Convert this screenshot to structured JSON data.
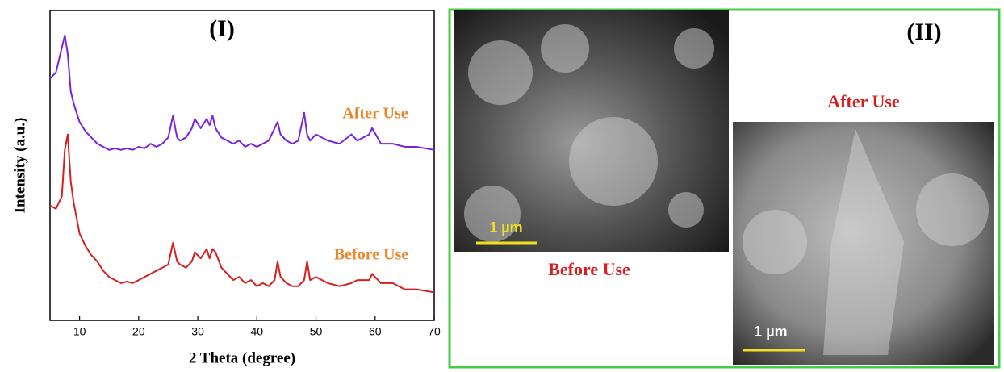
{
  "chart_data": {
    "type": "line",
    "title": "(I)",
    "x_label": "2 Theta (degree)",
    "y_label": "Intensity (a.u.)",
    "xlim": [
      5,
      70
    ],
    "xticks": [
      10,
      20,
      30,
      40,
      50,
      60,
      70
    ],
    "ylim": [
      0,
      100
    ],
    "x": [
      5,
      6,
      7,
      7.5,
      8,
      8.5,
      9,
      10,
      11,
      12,
      13,
      14,
      15,
      16,
      17,
      18,
      19,
      20,
      21,
      22,
      23,
      24,
      25,
      25.8,
      26.5,
      27,
      28,
      29,
      29.5,
      30.5,
      31.5,
      32,
      32.5,
      33,
      34,
      35,
      36,
      37,
      38,
      39,
      40,
      41,
      42,
      43,
      43.5,
      44,
      45,
      46,
      47,
      48,
      48.5,
      49,
      50,
      52,
      54,
      56,
      57,
      59,
      59.5,
      61,
      63,
      65,
      67,
      70
    ],
    "series": [
      {
        "name": "After Use",
        "color": "#7b22e0",
        "label_color": "#e8862a",
        "values": [
          78,
          80,
          88,
          92,
          86,
          74,
          70,
          64,
          61,
          59,
          57,
          56,
          55,
          55.5,
          55,
          55.5,
          55,
          56,
          55.5,
          57,
          56,
          57,
          59,
          66,
          59,
          58,
          59,
          62,
          65,
          62,
          65,
          63,
          66,
          62,
          59,
          58,
          57,
          58,
          56,
          57,
          56,
          57,
          58,
          62,
          64,
          60,
          58,
          57,
          58,
          67,
          60,
          58,
          60,
          58,
          57,
          60,
          58,
          60,
          62,
          57,
          57,
          56,
          56,
          55
        ]
      },
      {
        "name": "Before Use",
        "color": "#d62020",
        "label_color": "#e8862a",
        "values": [
          37,
          36,
          40,
          55,
          60,
          45,
          38,
          28,
          24,
          21,
          19,
          16,
          14,
          13,
          12,
          12.5,
          12,
          13,
          14,
          15,
          16,
          17,
          18,
          25,
          19,
          18,
          17,
          19,
          22,
          20,
          23,
          20,
          23,
          22,
          17,
          15,
          13,
          14,
          12,
          13,
          11,
          12,
          11,
          13,
          19,
          14,
          12,
          11,
          11,
          13,
          19,
          13,
          14,
          12,
          11,
          12,
          13,
          13,
          15,
          12,
          12,
          10,
          10,
          9
        ]
      }
    ]
  },
  "sem_panel": {
    "title": "(II)",
    "images": [
      {
        "label": "Before Use",
        "scale_bar": "1 µm"
      },
      {
        "label": "After Use",
        "scale_bar": "1 µm"
      }
    ]
  }
}
